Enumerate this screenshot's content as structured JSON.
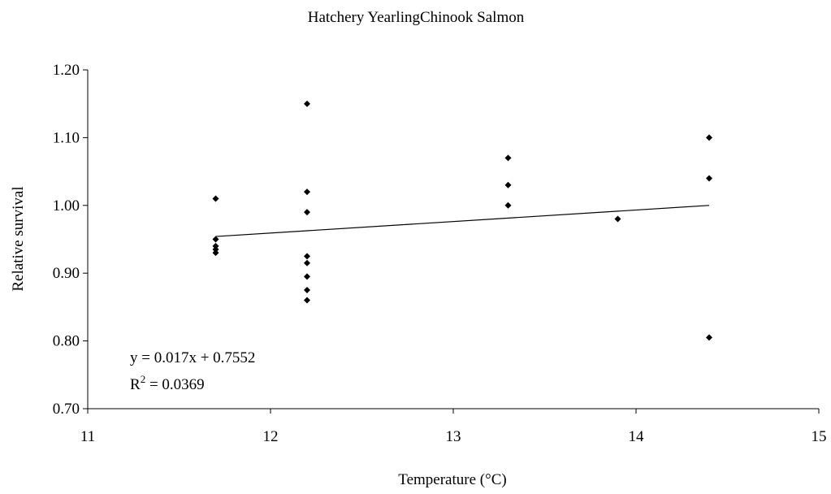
{
  "chart_data": {
    "type": "scatter",
    "title": "Hatchery YearlingChinook Salmon",
    "xlabel": "Temperature (°C)",
    "ylabel": "Relative survival",
    "xlim": [
      11,
      15
    ],
    "ylim": [
      0.7,
      1.2
    ],
    "xticks": [
      "11",
      "12",
      "13",
      "14",
      "15"
    ],
    "yticks": [
      "0.70",
      "0.80",
      "0.90",
      "1.00",
      "1.10",
      "1.20"
    ],
    "grid": false,
    "legend": "none",
    "series": [
      {
        "points": [
          {
            "x": 11.7,
            "y": 1.01
          },
          {
            "x": 11.7,
            "y": 0.95
          },
          {
            "x": 11.7,
            "y": 0.94
          },
          {
            "x": 11.7,
            "y": 0.935
          },
          {
            "x": 11.7,
            "y": 0.93
          },
          {
            "x": 12.2,
            "y": 1.15
          },
          {
            "x": 12.2,
            "y": 1.02
          },
          {
            "x": 12.2,
            "y": 0.99
          },
          {
            "x": 12.2,
            "y": 0.925
          },
          {
            "x": 12.2,
            "y": 0.915
          },
          {
            "x": 12.2,
            "y": 0.895
          },
          {
            "x": 12.2,
            "y": 0.875
          },
          {
            "x": 12.2,
            "y": 0.86
          },
          {
            "x": 13.3,
            "y": 1.07
          },
          {
            "x": 13.3,
            "y": 1.03
          },
          {
            "x": 13.3,
            "y": 1.0
          },
          {
            "x": 13.9,
            "y": 0.98
          },
          {
            "x": 14.4,
            "y": 1.1
          },
          {
            "x": 14.4,
            "y": 1.04
          },
          {
            "x": 14.4,
            "y": 0.805
          }
        ]
      }
    ],
    "trendline": {
      "type": "linear",
      "slope": 0.017,
      "intercept": 0.7552,
      "x_range": [
        11.7,
        14.4
      ]
    },
    "annotations": {
      "equation": "y = 0.017x + 0.7552",
      "r2_prefix": "R",
      "r2_sup": "2",
      "r2_suffix": " = 0.0369"
    }
  }
}
